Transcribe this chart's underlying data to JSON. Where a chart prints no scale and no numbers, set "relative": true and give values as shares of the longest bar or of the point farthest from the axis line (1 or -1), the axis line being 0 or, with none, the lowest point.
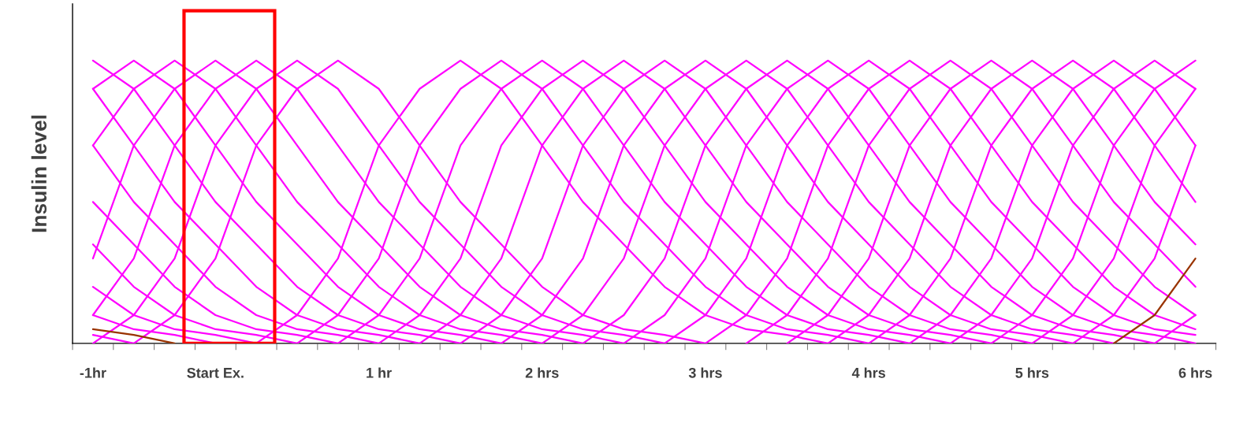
{
  "chart_data": {
    "type": "line",
    "ylabel": "Insulin level",
    "relative": true,
    "grid": false,
    "marker": "none",
    "line_style": "solid",
    "categories": [
      "-1hr",
      null,
      null,
      "Start Ex.",
      null,
      null,
      null,
      "1 hr",
      null,
      null,
      null,
      "2 hrs",
      null,
      null,
      null,
      "3 hrs",
      null,
      null,
      null,
      "4 hrs",
      null,
      null,
      null,
      "5 hrs",
      null,
      null,
      null,
      "6 hrs"
    ],
    "series": [
      {
        "color": "#ff00ff",
        "values": [
          0.03,
          0,
          null,
          null,
          null,
          null,
          null,
          null,
          null,
          null,
          null,
          null,
          null,
          null,
          null,
          null,
          null,
          null,
          null,
          null,
          null,
          null,
          null,
          null,
          null,
          null,
          null,
          null
        ]
      },
      {
        "color": "#ff00ff",
        "values": [
          0.1,
          0.05,
          0.03,
          0,
          null,
          null,
          null,
          null,
          null,
          null,
          null,
          null,
          null,
          null,
          null,
          null,
          null,
          null,
          null,
          null,
          null,
          null,
          null,
          null,
          null,
          null,
          null,
          null
        ]
      },
      {
        "color": "#ff00ff",
        "values": [
          0.2,
          0.1,
          0.05,
          0.03,
          0,
          null,
          null,
          null,
          null,
          null,
          null,
          null,
          null,
          null,
          null,
          null,
          null,
          null,
          null,
          null,
          null,
          null,
          null,
          null,
          null,
          null,
          null,
          null
        ]
      },
      {
        "color": "#ff00ff",
        "values": [
          0.35,
          0.2,
          0.1,
          0.05,
          0.03,
          0,
          null,
          null,
          null,
          null,
          null,
          null,
          null,
          null,
          null,
          null,
          null,
          null,
          null,
          null,
          null,
          null,
          null,
          null,
          null,
          null,
          null,
          null
        ]
      },
      {
        "color": "#ff00ff",
        "values": [
          0.5,
          0.35,
          0.2,
          0.1,
          0.05,
          0.03,
          0,
          null,
          null,
          null,
          null,
          null,
          null,
          null,
          null,
          null,
          null,
          null,
          null,
          null,
          null,
          null,
          null,
          null,
          null,
          null,
          null,
          null
        ]
      },
      {
        "color": "#ff00ff",
        "values": [
          0.7,
          0.5,
          0.35,
          0.2,
          0.1,
          0.05,
          0.03,
          0,
          null,
          null,
          null,
          null,
          null,
          null,
          null,
          null,
          null,
          null,
          null,
          null,
          null,
          null,
          null,
          null,
          null,
          null,
          null,
          null
        ]
      },
      {
        "color": "#ff00ff",
        "values": [
          0.9,
          0.7,
          0.5,
          0.35,
          0.2,
          0.1,
          0.05,
          0.03,
          0,
          null,
          null,
          null,
          null,
          null,
          null,
          null,
          null,
          null,
          null,
          null,
          null,
          null,
          null,
          null,
          null,
          null,
          null,
          null
        ]
      },
      {
        "color": "#ff00ff",
        "values": [
          1,
          0.9,
          0.7,
          0.5,
          0.35,
          0.2,
          0.1,
          0.05,
          0.03,
          0,
          null,
          null,
          null,
          null,
          null,
          null,
          null,
          null,
          null,
          null,
          null,
          null,
          null,
          null,
          null,
          null,
          null,
          null
        ]
      },
      {
        "color": "#ff00ff",
        "values": [
          0.9,
          1,
          0.9,
          0.7,
          0.5,
          0.35,
          0.2,
          0.1,
          0.05,
          0.03,
          0,
          null,
          null,
          null,
          null,
          null,
          null,
          null,
          null,
          null,
          null,
          null,
          null,
          null,
          null,
          null,
          null,
          null
        ]
      },
      {
        "color": "#ff00ff",
        "values": [
          0.7,
          0.9,
          1,
          0.9,
          0.7,
          0.5,
          0.35,
          0.2,
          0.1,
          0.05,
          0.03,
          0,
          null,
          null,
          null,
          null,
          null,
          null,
          null,
          null,
          null,
          null,
          null,
          null,
          null,
          null,
          null,
          null
        ]
      },
      {
        "color": "#ff00ff",
        "values": [
          0.3,
          0.7,
          0.9,
          1,
          0.9,
          0.7,
          0.5,
          0.35,
          0.2,
          0.1,
          0.05,
          0.03,
          0,
          null,
          null,
          null,
          null,
          null,
          null,
          null,
          null,
          null,
          null,
          null,
          null,
          null,
          null,
          null
        ]
      },
      {
        "color": "#ff00ff",
        "values": [
          0.1,
          0.3,
          0.7,
          0.9,
          1,
          0.9,
          0.7,
          0.5,
          0.35,
          0.2,
          0.1,
          0.05,
          0.03,
          0,
          null,
          null,
          null,
          null,
          null,
          null,
          null,
          null,
          null,
          null,
          null,
          null,
          null,
          null
        ]
      },
      {
        "color": "#ff00ff",
        "values": [
          0,
          0.1,
          0.3,
          0.7,
          0.9,
          1,
          0.9,
          0.7,
          0.5,
          0.35,
          0.2,
          0.1,
          0.05,
          0.03,
          0,
          null,
          null,
          null,
          null,
          null,
          null,
          null,
          null,
          null,
          null,
          null,
          null,
          null
        ]
      },
      {
        "color": "#ff00ff",
        "values": [
          null,
          0,
          0.1,
          0.3,
          0.7,
          0.9,
          1,
          0.9,
          0.7,
          0.5,
          0.35,
          0.2,
          0.1,
          0.05,
          0.03,
          0,
          null,
          null,
          null,
          null,
          null,
          null,
          null,
          null,
          null,
          null,
          null,
          null
        ]
      },
      {
        "color": "#ff00ff",
        "values": [
          null,
          null,
          null,
          null,
          0,
          0.1,
          0.3,
          0.7,
          0.9,
          1,
          0.9,
          0.7,
          0.5,
          0.35,
          0.2,
          0.1,
          0.05,
          0.03,
          0,
          null,
          null,
          null,
          null,
          null,
          null,
          null,
          null,
          null
        ]
      },
      {
        "color": "#ff00ff",
        "values": [
          null,
          null,
          null,
          null,
          null,
          0,
          0.1,
          0.3,
          0.7,
          0.9,
          1,
          0.9,
          0.7,
          0.5,
          0.35,
          0.2,
          0.1,
          0.05,
          0.03,
          0,
          null,
          null,
          null,
          null,
          null,
          null,
          null,
          null
        ]
      },
      {
        "color": "#ff00ff",
        "values": [
          null,
          null,
          null,
          null,
          null,
          null,
          0,
          0.1,
          0.3,
          0.7,
          0.9,
          1,
          0.9,
          0.7,
          0.5,
          0.35,
          0.2,
          0.1,
          0.05,
          0.03,
          0,
          null,
          null,
          null,
          null,
          null,
          null,
          null
        ]
      },
      {
        "color": "#ff00ff",
        "values": [
          null,
          null,
          null,
          null,
          null,
          null,
          null,
          0,
          0.1,
          0.3,
          0.7,
          0.9,
          1,
          0.9,
          0.7,
          0.5,
          0.35,
          0.2,
          0.1,
          0.05,
          0.03,
          0,
          null,
          null,
          null,
          null,
          null,
          null
        ]
      },
      {
        "color": "#ff00ff",
        "values": [
          null,
          null,
          null,
          null,
          null,
          null,
          null,
          null,
          0,
          0.1,
          0.3,
          0.7,
          0.9,
          1,
          0.9,
          0.7,
          0.5,
          0.35,
          0.2,
          0.1,
          0.05,
          0.03,
          0,
          null,
          null,
          null,
          null,
          null
        ]
      },
      {
        "color": "#ff00ff",
        "values": [
          null,
          null,
          null,
          null,
          null,
          null,
          null,
          null,
          null,
          0,
          0.1,
          0.3,
          0.7,
          0.9,
          1,
          0.9,
          0.7,
          0.5,
          0.35,
          0.2,
          0.1,
          0.05,
          0.03,
          0,
          null,
          null,
          null,
          null
        ]
      },
      {
        "color": "#ff00ff",
        "values": [
          null,
          null,
          null,
          null,
          null,
          null,
          null,
          null,
          null,
          null,
          0,
          0.1,
          0.3,
          0.7,
          0.9,
          1,
          0.9,
          0.7,
          0.5,
          0.35,
          0.2,
          0.1,
          0.05,
          0.03,
          0,
          null,
          null,
          null
        ]
      },
      {
        "color": "#ff00ff",
        "values": [
          null,
          null,
          null,
          null,
          null,
          null,
          null,
          null,
          null,
          null,
          null,
          0,
          0.1,
          0.3,
          0.7,
          0.9,
          1,
          0.9,
          0.7,
          0.5,
          0.35,
          0.2,
          0.1,
          0.05,
          0.03,
          0,
          null,
          null
        ]
      },
      {
        "color": "#ff00ff",
        "values": [
          null,
          null,
          null,
          null,
          null,
          null,
          null,
          null,
          null,
          null,
          null,
          null,
          0,
          0.1,
          0.3,
          0.7,
          0.9,
          1,
          0.9,
          0.7,
          0.5,
          0.35,
          0.2,
          0.1,
          0.05,
          0.03,
          0,
          null
        ]
      },
      {
        "color": "#ff00ff",
        "values": [
          null,
          null,
          null,
          null,
          null,
          null,
          null,
          null,
          null,
          null,
          null,
          null,
          null,
          0,
          0.1,
          0.3,
          0.7,
          0.9,
          1,
          0.9,
          0.7,
          0.5,
          0.35,
          0.2,
          0.1,
          0.05,
          0.03,
          0
        ]
      },
      {
        "color": "#ff00ff",
        "values": [
          null,
          null,
          null,
          null,
          null,
          null,
          null,
          null,
          null,
          null,
          null,
          null,
          null,
          null,
          0,
          0.1,
          0.3,
          0.7,
          0.9,
          1,
          0.9,
          0.7,
          0.5,
          0.35,
          0.2,
          0.1,
          0.05,
          0.03
        ]
      },
      {
        "color": "#ff00ff",
        "values": [
          null,
          null,
          null,
          null,
          null,
          null,
          null,
          null,
          null,
          null,
          null,
          null,
          null,
          null,
          null,
          0,
          0.1,
          0.3,
          0.7,
          0.9,
          1,
          0.9,
          0.7,
          0.5,
          0.35,
          0.2,
          0.1,
          0.05
        ]
      },
      {
        "color": "#ff00ff",
        "values": [
          null,
          null,
          null,
          null,
          null,
          null,
          null,
          null,
          null,
          null,
          null,
          null,
          null,
          null,
          null,
          null,
          0,
          0.1,
          0.3,
          0.7,
          0.9,
          1,
          0.9,
          0.7,
          0.5,
          0.35,
          0.2,
          0.1
        ]
      },
      {
        "color": "#ff00ff",
        "values": [
          null,
          null,
          null,
          null,
          null,
          null,
          null,
          null,
          null,
          null,
          null,
          null,
          null,
          null,
          null,
          null,
          null,
          0,
          0.1,
          0.3,
          0.7,
          0.9,
          1,
          0.9,
          0.7,
          0.5,
          0.35,
          0.2
        ]
      },
      {
        "color": "#ff00ff",
        "values": [
          null,
          null,
          null,
          null,
          null,
          null,
          null,
          null,
          null,
          null,
          null,
          null,
          null,
          null,
          null,
          null,
          null,
          null,
          0,
          0.1,
          0.3,
          0.7,
          0.9,
          1,
          0.9,
          0.7,
          0.5,
          0.35
        ]
      },
      {
        "color": "#ff00ff",
        "values": [
          null,
          null,
          null,
          null,
          null,
          null,
          null,
          null,
          null,
          null,
          null,
          null,
          null,
          null,
          null,
          null,
          null,
          null,
          null,
          0,
          0.1,
          0.3,
          0.7,
          0.9,
          1,
          0.9,
          0.7,
          0.5
        ]
      },
      {
        "color": "#ff00ff",
        "values": [
          null,
          null,
          null,
          null,
          null,
          null,
          null,
          null,
          null,
          null,
          null,
          null,
          null,
          null,
          null,
          null,
          null,
          null,
          null,
          null,
          0,
          0.1,
          0.3,
          0.7,
          0.9,
          1,
          0.9,
          0.7
        ]
      },
      {
        "color": "#ff00ff",
        "values": [
          null,
          null,
          null,
          null,
          null,
          null,
          null,
          null,
          null,
          null,
          null,
          null,
          null,
          null,
          null,
          null,
          null,
          null,
          null,
          null,
          null,
          0,
          0.1,
          0.3,
          0.7,
          0.9,
          1,
          0.9
        ]
      },
      {
        "color": "#ff00ff",
        "values": [
          null,
          null,
          null,
          null,
          null,
          null,
          null,
          null,
          null,
          null,
          null,
          null,
          null,
          null,
          null,
          null,
          null,
          null,
          null,
          null,
          null,
          null,
          0,
          0.1,
          0.3,
          0.7,
          0.9,
          1
        ]
      },
      {
        "color": "#ff00ff",
        "values": [
          null,
          null,
          null,
          null,
          null,
          null,
          null,
          null,
          null,
          null,
          null,
          null,
          null,
          null,
          null,
          null,
          null,
          null,
          null,
          null,
          null,
          null,
          null,
          0,
          0.1,
          0.3,
          0.7,
          0.9
        ]
      },
      {
        "color": "#ff00ff",
        "values": [
          null,
          null,
          null,
          null,
          null,
          null,
          null,
          null,
          null,
          null,
          null,
          null,
          null,
          null,
          null,
          null,
          null,
          null,
          null,
          null,
          null,
          null,
          null,
          null,
          0,
          0.1,
          0.3,
          0.7
        ]
      },
      {
        "color": "#ff00ff",
        "values": [
          null,
          null,
          null,
          null,
          null,
          null,
          null,
          null,
          null,
          null,
          null,
          null,
          null,
          null,
          null,
          null,
          null,
          null,
          null,
          null,
          null,
          null,
          null,
          null,
          null,
          null,
          0,
          0.1
        ]
      },
      {
        "color": "#993300",
        "values": [
          0.05,
          0.03,
          0,
          null,
          null,
          null,
          null,
          null,
          null,
          null,
          null,
          null,
          null,
          null,
          null,
          null,
          null,
          null,
          null,
          null,
          null,
          null,
          null,
          null,
          null,
          null,
          null,
          null
        ]
      },
      {
        "color": "#993300",
        "values": [
          null,
          null,
          null,
          null,
          null,
          null,
          null,
          null,
          null,
          null,
          null,
          null,
          null,
          null,
          null,
          null,
          null,
          null,
          null,
          null,
          null,
          null,
          null,
          null,
          null,
          0,
          0.1,
          0.3
        ]
      }
    ]
  }
}
